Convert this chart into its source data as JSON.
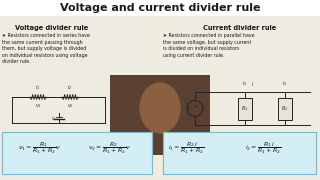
{
  "title": "Voltage and current divider rule",
  "title_fontsize": 8.5,
  "bg_color": "#e8e4dc",
  "left_heading": "Voltage divider rule",
  "right_heading": "Current divider rule",
  "left_text": "➤ Resistors connected in series have\nthe same current passing through\nthem, but supply voltage is divided\non individual resistors using voltage\ndivider rule.",
  "right_text": "➤ Resistors connected in parallel have\nthe same voltage, but supply current\nis divided on individual resistors\nusing current divider rule.",
  "left_formula1": "$v_1 = \\dfrac{R_1}{R_1 + R_2}v$",
  "left_formula2": "$v_2 = \\dfrac{R_2}{R_1 + R_2}v$",
  "right_formula1": "$i_1 = \\dfrac{R_2\\,i}{R_1 + R_2}$",
  "right_formula2": "$i_2 = \\dfrac{R_1\\,i}{R_1 + R_2}$",
  "formula_box_color": "#d4eef5",
  "formula_box_edge": "#7ab8cc",
  "text_color": "#1a1a1a",
  "heading_color": "#1a1a1a",
  "circuit_color": "#222222",
  "person_bg": "#5a4030"
}
